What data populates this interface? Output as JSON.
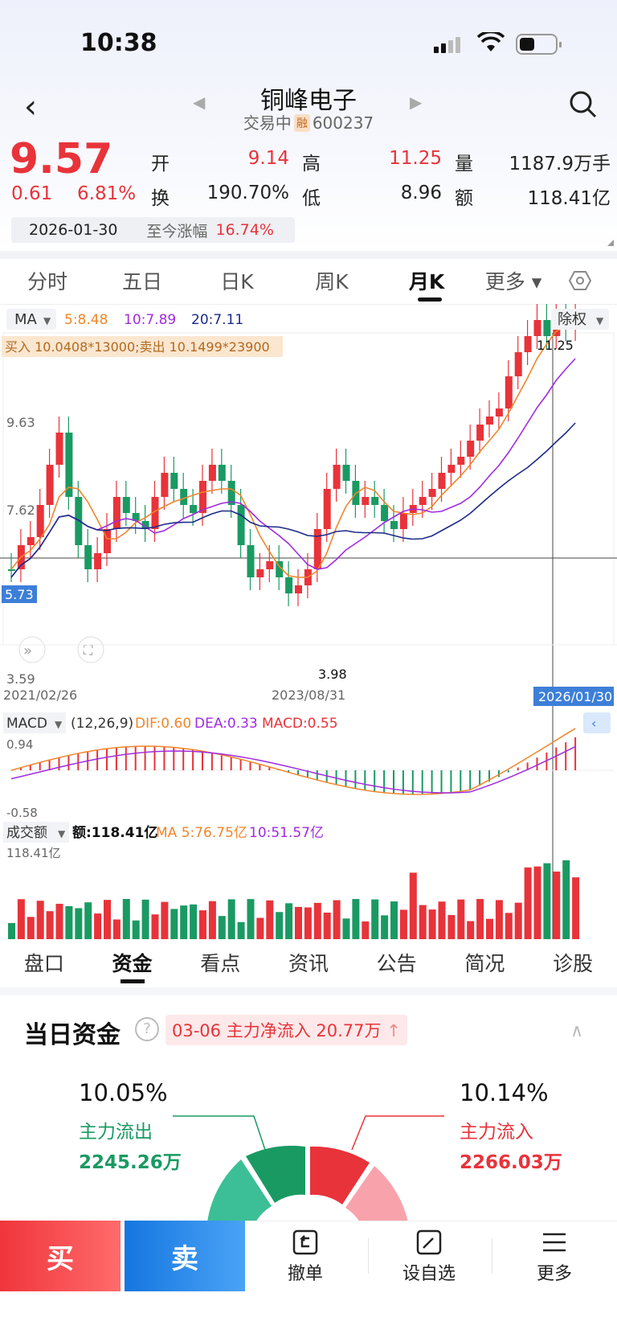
{
  "status": {
    "time": "10:38"
  },
  "stock": {
    "name": "铜峰电子",
    "status": "交易中",
    "badge": "融",
    "code": "600237"
  },
  "quote": {
    "price": "9.57",
    "change": "0.61",
    "change_pct": "6.81%",
    "open_label": "开",
    "open": "9.14",
    "high_label": "高",
    "high": "11.25",
    "volume_label": "量",
    "volume": "1187.9万手",
    "turnover_label": "换",
    "turnover": "190.70%",
    "low_label": "低",
    "low": "8.96",
    "amount_label": "额",
    "amount": "118.41亿",
    "date": "2026-01-30",
    "since_label": "至今涨幅",
    "since_value": "16.74%"
  },
  "tabs": [
    {
      "label": "分时"
    },
    {
      "label": "五日"
    },
    {
      "label": "日K"
    },
    {
      "label": "周K"
    },
    {
      "label": "月K"
    },
    {
      "label": "更多 ▾"
    }
  ],
  "ma_bar": {
    "selector": "MA",
    "ma5": "5:8.48",
    "ma10": "10:7.89",
    "ma20": "20:7.11",
    "adjust": "除权"
  },
  "order_line": "买入 10.0408*13000;卖出 10.1499*23900",
  "price_axis": {
    "y1": "9.63",
    "y2": "7.62",
    "y3": "5.73",
    "y4": "3.59",
    "high_mark": "11.25",
    "low_mark": "3.98"
  },
  "date_axis": {
    "d1": "2021/02/26",
    "d2": "2023/08/31",
    "d3": "2026/01/30"
  },
  "macd": {
    "selector": "MACD",
    "params": "(12,26,9)",
    "dif": "DIF:0.60",
    "dea": "DEA:0.33",
    "macd": "MACD:0.55",
    "top": "0.94",
    "bottom": "-0.58"
  },
  "vol": {
    "selector": "成交额",
    "amount": "额:118.41亿",
    "ma5": "MA 5:76.75亿",
    "ma10": "10:51.57亿",
    "top": "118.41亿"
  },
  "bottom_tabs": [
    {
      "label": "盘口"
    },
    {
      "label": "资金"
    },
    {
      "label": "看点"
    },
    {
      "label": "资讯"
    },
    {
      "label": "公告"
    },
    {
      "label": "简况"
    },
    {
      "label": "诊股"
    }
  ],
  "fund": {
    "title": "当日资金",
    "net_text": "03-06 主力净流入 20.77万",
    "out_pct": "10.05%",
    "out_label": "主力流出",
    "out_amount": "2245.26万",
    "in_pct": "10.14%",
    "in_label": "主力流入",
    "in_amount": "2266.03万"
  },
  "actions": {
    "buy": "买",
    "sell": "卖",
    "cancel": "撤单",
    "watch": "设自选",
    "more": "更多"
  },
  "colors": {
    "up": "#e8333a",
    "down": "#1a9a63",
    "ma5": "#f0862a",
    "ma10": "#a12be0",
    "ma20": "#1c2a8a"
  }
}
